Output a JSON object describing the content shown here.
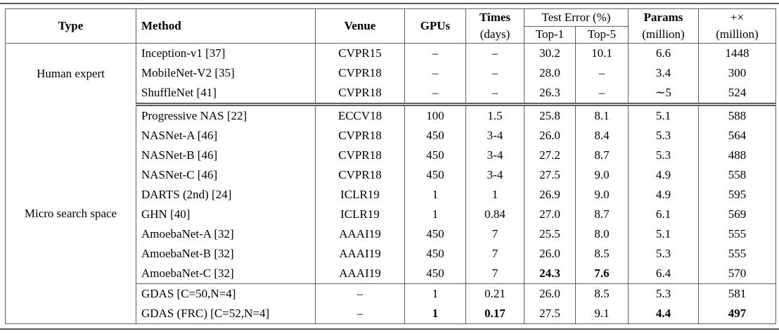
{
  "table": {
    "header": {
      "type": "Type",
      "method": "Method",
      "venue": "Venue",
      "gpus": "GPUs",
      "times": "Times",
      "times_unit": "(days)",
      "test_error": "Test Error (%)",
      "top1": "Top-1",
      "top5": "Top-5",
      "params": "Params",
      "params_unit": "(million)",
      "madds": "+×",
      "madds_unit": "(million)"
    },
    "sections": [
      {
        "type": "Human expert",
        "rows": [
          {
            "method": "Inception-v1 [37]",
            "venue": "CVPR15",
            "gpus": "–",
            "times": "–",
            "top1": "30.2",
            "top5": "10.1",
            "params": "6.6",
            "madds": "1448"
          },
          {
            "method": "MobileNet-V2 [35]",
            "venue": "CVPR18",
            "gpus": "–",
            "times": "–",
            "top1": "28.0",
            "top5": "–",
            "params": "3.4",
            "madds": "300"
          },
          {
            "method": "ShuffleNet [41]",
            "venue": "CVPR18",
            "gpus": "–",
            "times": "–",
            "top1": "26.3",
            "top5": "–",
            "params": "∼5",
            "madds": "524"
          }
        ]
      },
      {
        "type": "Micro search space",
        "rows": [
          {
            "method": "Progressive NAS [22]",
            "venue": "ECCV18",
            "gpus": "100",
            "times": "1.5",
            "top1": "25.8",
            "top5": "8.1",
            "params": "5.1",
            "madds": "588"
          },
          {
            "method": "NASNet-A [46]",
            "venue": "CVPR18",
            "gpus": "450",
            "times": "3-4",
            "top1": "26.0",
            "top5": "8.4",
            "params": "5.3",
            "madds": "564"
          },
          {
            "method": "NASNet-B [46]",
            "venue": "CVPR18",
            "gpus": "450",
            "times": "3-4",
            "top1": "27.2",
            "top5": "8.7",
            "params": "5.3",
            "madds": "488"
          },
          {
            "method": "NASNet-C [46]",
            "venue": "CVPR18",
            "gpus": "450",
            "times": "3-4",
            "top1": "27.5",
            "top5": "9.0",
            "params": "4.9",
            "madds": "558"
          },
          {
            "method": "DARTS (2nd) [24]",
            "venue": "ICLR19",
            "gpus": "1",
            "times": "1",
            "top1": "26.9",
            "top5": "9.0",
            "params": "4.9",
            "madds": "595"
          },
          {
            "method": "GHN [40]",
            "venue": "ICLR19",
            "gpus": "1",
            "times": "0.84",
            "top1": "27.0",
            "top5": "8.7",
            "params": "6.1",
            "madds": "569"
          },
          {
            "method": "AmoebaNet-A [32]",
            "venue": "AAAI19",
            "gpus": "450",
            "times": "7",
            "top1": "25.5",
            "top5": "8.0",
            "params": "5.1",
            "madds": "555"
          },
          {
            "method": "AmoebaNet-B [32]",
            "venue": "AAAI19",
            "gpus": "450",
            "times": "7",
            "top1": "26.0",
            "top5": "8.5",
            "params": "5.3",
            "madds": "555"
          },
          {
            "method": "AmoebaNet-C [32]",
            "venue": "AAAI19",
            "gpus": "450",
            "times": "7",
            "top1": "24.3",
            "top5": "7.6",
            "params": "6.4",
            "madds": "570"
          },
          {
            "method": "GDAS [C=50,N=4]",
            "venue": "–",
            "gpus": "1",
            "times": "0.21",
            "top1": "26.0",
            "top5": "8.5",
            "params": "5.3",
            "madds": "581"
          },
          {
            "method": "GDAS (FRC) [C=52,N=4]",
            "venue": "–",
            "gpus": "1",
            "times": "0.17",
            "top1": "27.5",
            "top5": "9.1",
            "params": "4.4",
            "madds": "497"
          }
        ]
      }
    ]
  }
}
